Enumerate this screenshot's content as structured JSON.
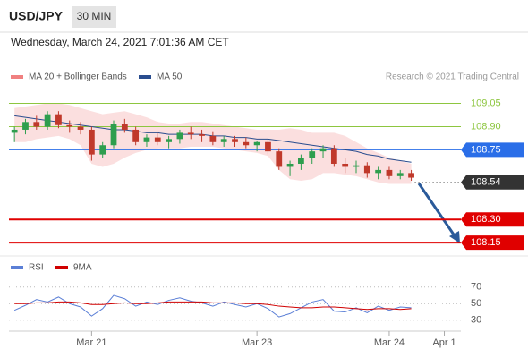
{
  "header": {
    "symbol": "USD/JPY",
    "interval": "30 MIN",
    "timestamp": "Wednesday, March 24, 2021 7:01:36 AM CET"
  },
  "chart_data": {
    "type": "candlestick",
    "legend": [
      {
        "name": "MA 20 + Bollinger Bands",
        "color": "#f08080"
      },
      {
        "name": "MA 50",
        "color": "#2a4d8f"
      }
    ],
    "credit": "Research © 2021 Trading Central",
    "xlim": [
      -0.5,
      40.5
    ],
    "xticks": [
      {
        "value": 7,
        "label": "Mar 21"
      },
      {
        "value": 22,
        "label": "Mar 23"
      },
      {
        "value": 34,
        "label": "Mar 24"
      },
      {
        "value": 39,
        "label": "Apr 1"
      }
    ],
    "ylim": [
      108.07,
      109.14
    ],
    "up_color": "#2e9e4e",
    "down_color": "#c0392b",
    "open": [
      108.86,
      108.88,
      108.93,
      108.9,
      108.98,
      108.91,
      108.9,
      108.88,
      108.72,
      108.78,
      108.92,
      108.88,
      108.8,
      108.83,
      108.8,
      108.82,
      108.86,
      108.85,
      108.84,
      108.8,
      108.82,
      108.8,
      108.78,
      108.8,
      108.74,
      108.64,
      108.66,
      108.7,
      108.74,
      108.76,
      108.66,
      108.64,
      108.65,
      108.6,
      108.62,
      108.58,
      108.6
    ],
    "high": [
      108.9,
      108.95,
      108.97,
      109.0,
      109.0,
      108.94,
      108.93,
      108.9,
      108.8,
      108.94,
      108.95,
      108.9,
      108.85,
      108.86,
      108.84,
      108.88,
      108.9,
      108.88,
      108.87,
      108.84,
      108.84,
      108.83,
      108.81,
      108.82,
      108.76,
      108.68,
      108.72,
      108.76,
      108.78,
      108.78,
      108.7,
      108.68,
      108.67,
      108.64,
      108.64,
      108.62,
      108.62
    ],
    "low": [
      108.8,
      108.85,
      108.88,
      108.88,
      108.89,
      108.86,
      108.85,
      108.68,
      108.7,
      108.76,
      108.86,
      108.78,
      108.77,
      108.78,
      108.76,
      108.79,
      108.82,
      108.8,
      108.78,
      108.77,
      108.77,
      108.76,
      108.74,
      108.72,
      108.62,
      108.58,
      108.62,
      108.66,
      108.7,
      108.64,
      108.6,
      108.6,
      108.57,
      108.56,
      108.56,
      108.56,
      108.55
    ],
    "close": [
      108.88,
      108.93,
      108.9,
      108.98,
      108.91,
      108.9,
      108.88,
      108.72,
      108.78,
      108.92,
      108.88,
      108.8,
      108.83,
      108.8,
      108.82,
      108.86,
      108.85,
      108.84,
      108.8,
      108.82,
      108.8,
      108.78,
      108.8,
      108.74,
      108.64,
      108.66,
      108.7,
      108.74,
      108.76,
      108.66,
      108.64,
      108.65,
      108.6,
      108.62,
      108.58,
      108.6,
      108.57
    ],
    "bollinger_upper": [
      109.02,
      109.03,
      109.04,
      109.05,
      109.05,
      109.04,
      109.02,
      109.0,
      108.98,
      108.99,
      109.0,
      108.98,
      108.96,
      108.93,
      108.92,
      108.92,
      108.93,
      108.93,
      108.92,
      108.91,
      108.9,
      108.89,
      108.88,
      108.88,
      108.88,
      108.89,
      108.88,
      108.86,
      108.86,
      108.86,
      108.84,
      108.8,
      108.76,
      108.73,
      108.7,
      108.68,
      108.66
    ],
    "bollinger_lower": [
      108.8,
      108.8,
      108.82,
      108.83,
      108.84,
      108.82,
      108.78,
      108.66,
      108.64,
      108.66,
      108.7,
      108.73,
      108.75,
      108.76,
      108.76,
      108.76,
      108.77,
      108.77,
      108.77,
      108.76,
      108.75,
      108.74,
      108.73,
      108.71,
      108.62,
      108.56,
      108.55,
      108.56,
      108.6,
      108.6,
      108.59,
      108.58,
      108.56,
      108.54,
      108.53,
      108.53,
      108.53
    ],
    "ma50": [
      108.97,
      108.96,
      108.95,
      108.94,
      108.93,
      108.92,
      108.91,
      108.9,
      108.89,
      108.88,
      108.88,
      108.87,
      108.86,
      108.86,
      108.85,
      108.85,
      108.85,
      108.85,
      108.84,
      108.84,
      108.83,
      108.83,
      108.82,
      108.82,
      108.81,
      108.8,
      108.79,
      108.78,
      108.77,
      108.76,
      108.75,
      108.74,
      108.72,
      108.71,
      108.69,
      108.68,
      108.67
    ],
    "levels": [
      {
        "value": 109.05,
        "label": "109.05",
        "color": "#8dc63f",
        "line": "solid",
        "box": false
      },
      {
        "value": 108.9,
        "label": "108.90",
        "color": "#8dc63f",
        "line": "solid",
        "box": false
      },
      {
        "value": 108.75,
        "label": "108.75",
        "color": "#2a6ee8",
        "line": "solid",
        "box": true
      },
      {
        "value": 108.54,
        "label": "108.54",
        "color": "#333333",
        "line": "dotted",
        "box": true
      },
      {
        "value": 108.3,
        "label": "108.30",
        "color": "#e00000",
        "line": "solid",
        "box": true
      },
      {
        "value": 108.15,
        "label": "108.15",
        "color": "#e00000",
        "line": "solid",
        "box": true
      }
    ],
    "rsi": {
      "ylim": [
        19,
        87
      ],
      "yticks": [
        70,
        50,
        30
      ],
      "series": [
        {
          "name": "RSI",
          "color": "#5b7fd6",
          "values": [
            42,
            48,
            55,
            52,
            58,
            50,
            46,
            35,
            44,
            60,
            56,
            47,
            52,
            49,
            54,
            57,
            53,
            51,
            47,
            52,
            49,
            46,
            50,
            44,
            34,
            38,
            45,
            52,
            55,
            41,
            40,
            45,
            39,
            47,
            42,
            46,
            45
          ]
        },
        {
          "name": "9MA",
          "color": "#d00000",
          "values": [
            50,
            50,
            51,
            51,
            52,
            52,
            51,
            49,
            49,
            50,
            51,
            50,
            50,
            51,
            52,
            52,
            52,
            52,
            51,
            51,
            51,
            50,
            50,
            49,
            47,
            46,
            45,
            45,
            46,
            46,
            45,
            44,
            43,
            44,
            44,
            43,
            44
          ]
        }
      ]
    }
  }
}
